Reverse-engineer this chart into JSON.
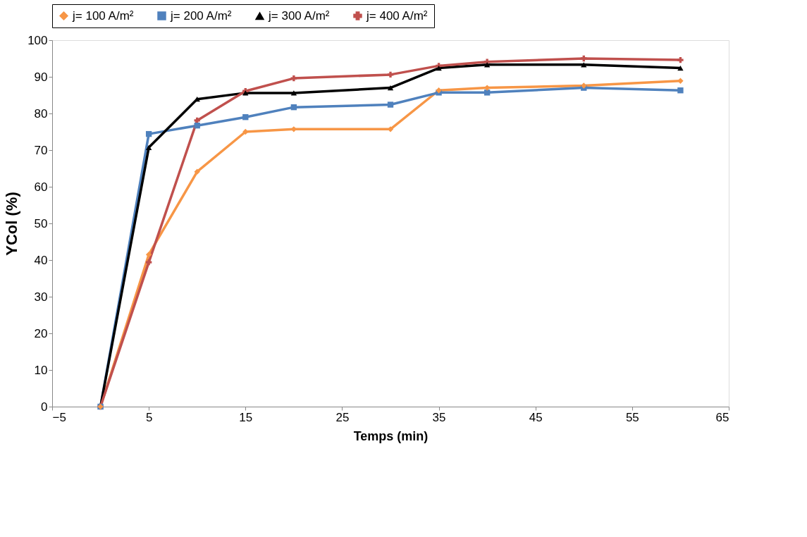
{
  "chart_data": {
    "type": "line",
    "xlabel": "Temps (min)",
    "ylabel": "YCol (%)",
    "x": [
      0,
      5,
      10,
      15,
      20,
      30,
      35,
      40,
      50,
      60
    ],
    "series": [
      {
        "name": "j= 100 A/m²",
        "color": "#f79646",
        "marker": "diamond",
        "values": [
          0,
          41.5,
          64.1,
          75,
          75.7,
          75.7,
          86.3,
          87,
          87.6,
          88.9
        ]
      },
      {
        "name": "j= 200 A/m²",
        "color": "#4f81bd",
        "marker": "square",
        "values": [
          0,
          74.4,
          76.7,
          79,
          81.7,
          82.4,
          85.7,
          85.7,
          87,
          86.3
        ]
      },
      {
        "name": "j= 300 A/m²",
        "color": "#000000",
        "marker": "triangle",
        "values": [
          0,
          70.7,
          83.9,
          85.6,
          85.6,
          87,
          92.4,
          93.3,
          93.3,
          92.4
        ]
      },
      {
        "name": "j= 400 A/m²",
        "color": "#c0504d",
        "marker": "cross",
        "values": [
          0,
          39.4,
          78.1,
          86.1,
          89.6,
          90.6,
          93,
          94.1,
          95,
          94.6
        ]
      }
    ],
    "xlim": [
      -5,
      65
    ],
    "xticks": [
      -5,
      5,
      15,
      25,
      35,
      45,
      55,
      65
    ],
    "ylim": [
      0,
      100
    ],
    "yticks": [
      0,
      10,
      20,
      30,
      40,
      50,
      60,
      70,
      80,
      90,
      100
    ],
    "grid": false,
    "legend": "top",
    "line_style": "solid"
  }
}
